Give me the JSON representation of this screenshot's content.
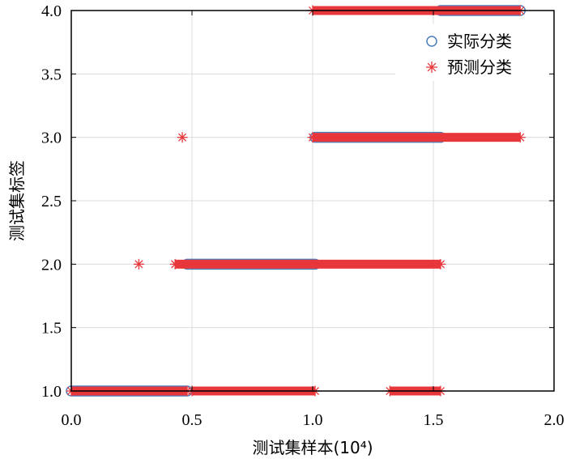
{
  "chart_data": {
    "type": "scatter",
    "xlabel": "测试集样本(10⁴)",
    "ylabel": "测试集标签",
    "xlim": [
      0,
      2.0
    ],
    "ylim": [
      1.0,
      4.0
    ],
    "x_ticks": [
      "0.0",
      "0.5",
      "1.0",
      "1.5",
      "2.0"
    ],
    "y_ticks": [
      "1.0",
      "1.5",
      "2.0",
      "2.5",
      "3.0",
      "3.5",
      "4.0"
    ],
    "grid": true,
    "legend_position": "top-right",
    "series": [
      {
        "name": "实际分类",
        "marker": "circle",
        "color": "#4a7ebb",
        "segments": [
          {
            "x_start": 0.0,
            "x_end": 0.48,
            "y": 1.0
          },
          {
            "x_start": 0.48,
            "x_end": 1.01,
            "y": 2.0
          },
          {
            "x_start": 1.01,
            "x_end": 1.53,
            "y": 3.0
          },
          {
            "x_start": 1.53,
            "x_end": 1.86,
            "y": 4.0
          }
        ]
      },
      {
        "name": "预测分类",
        "marker": "asterisk",
        "color": "#e8373a",
        "segments": [
          {
            "x_start": 0.0,
            "x_end": 0.48,
            "y": 1.0
          },
          {
            "x_start": 0.5,
            "x_end": 1.01,
            "y": 1.0
          },
          {
            "x_start": 1.32,
            "x_end": 1.53,
            "y": 1.0
          },
          {
            "x_start": 0.43,
            "x_end": 1.53,
            "y": 2.0
          },
          {
            "x_start": 1.0,
            "x_end": 1.86,
            "y": 3.0
          },
          {
            "x_start": 1.0,
            "x_end": 1.86,
            "y": 4.0
          }
        ],
        "points": [
          {
            "x": 0.28,
            "y": 2.0
          },
          {
            "x": 0.46,
            "y": 3.0
          }
        ]
      }
    ]
  }
}
